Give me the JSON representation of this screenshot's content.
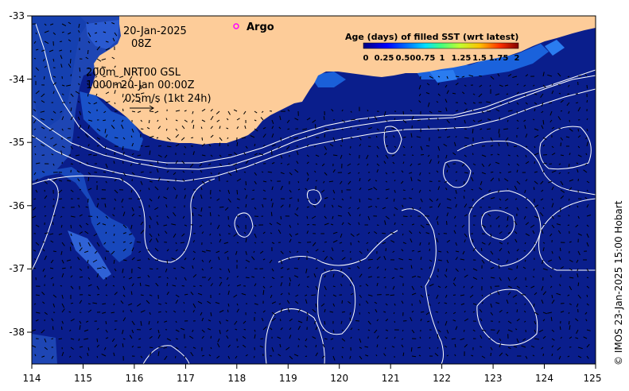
{
  "map": {
    "date_label": "20-Jan-2025",
    "time_label": "08Z",
    "depth_200": "200m",
    "depth_1000": "1000m",
    "product_label": "NRT00 GSL",
    "product_time": "20-Jan 00:00Z",
    "vector_scale_label": "0.5m/s (1kt 24h)",
    "legend_argo_label": "Argo",
    "credit": "© IMOS 23-Jan-2025 15:00 Hobart",
    "x_ticks": [
      "114",
      "115",
      "116",
      "117",
      "118",
      "119",
      "120",
      "121",
      "122",
      "123",
      "124",
      "125"
    ],
    "y_ticks": [
      "-33",
      "-34",
      "-35",
      "-36",
      "-37",
      "-38"
    ]
  },
  "colorbar": {
    "title": "Age (days) of filled SST (wrt latest)",
    "ticks": [
      "0",
      "0.25",
      "0.50",
      "0.75",
      "1",
      "1.25",
      "1.5",
      "1.75",
      "2"
    ]
  },
  "colors": {
    "ocean": "#0a1e8c",
    "land": "#fdcc99",
    "argo_marker": "#ff00ff"
  }
}
